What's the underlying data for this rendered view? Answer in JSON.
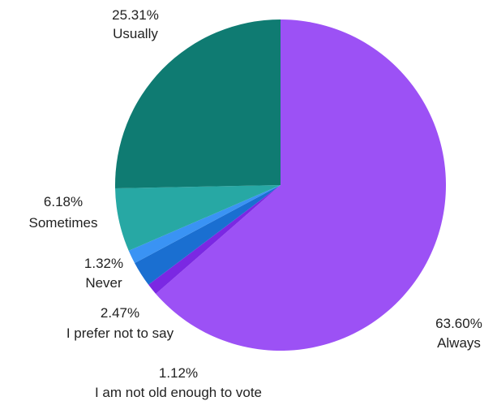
{
  "chart_data": {
    "type": "pie",
    "slices": [
      {
        "label": "Always",
        "value": 63.6,
        "value_text": "63.60%",
        "color": "#9c51f5"
      },
      {
        "label": "I am not old enough to vote",
        "value": 1.12,
        "value_text": "1.12%",
        "color": "#7b28e3"
      },
      {
        "label": "I prefer not to say",
        "value": 2.47,
        "value_text": "2.47%",
        "color": "#1a6fd1"
      },
      {
        "label": "Never",
        "value": 1.32,
        "value_text": "1.32%",
        "color": "#3a93f4"
      },
      {
        "label": "Sometimes",
        "value": 6.18,
        "value_text": "6.18%",
        "color": "#27a8a4"
      },
      {
        "label": "Usually",
        "value": 25.31,
        "value_text": "25.31%",
        "color": "#0f7b72"
      }
    ],
    "start_angle": "12 o'clock",
    "direction": "clockwise",
    "legend": "none (labels outside slices)"
  }
}
